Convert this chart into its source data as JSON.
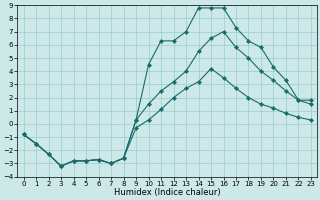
{
  "xlabel": "Humidex (Indice chaleur)",
  "xlim": [
    -0.5,
    23.5
  ],
  "ylim": [
    -4,
    9
  ],
  "xticks": [
    0,
    1,
    2,
    3,
    4,
    5,
    6,
    7,
    8,
    9,
    10,
    11,
    12,
    13,
    14,
    15,
    16,
    17,
    18,
    19,
    20,
    21,
    22,
    23
  ],
  "yticks": [
    -4,
    -3,
    -2,
    -1,
    0,
    1,
    2,
    3,
    4,
    5,
    6,
    7,
    8,
    9
  ],
  "bg_color": "#cce8e8",
  "grid_color": "#99cccc",
  "line_color": "#1a6b6b",
  "line1_x": [
    0,
    1,
    2,
    3,
    4,
    5,
    6,
    7,
    8,
    9,
    10,
    11,
    12,
    13,
    14,
    15,
    16,
    17,
    18,
    19,
    20,
    21,
    22,
    23
  ],
  "line1_y": [
    -0.8,
    -1.5,
    -2.3,
    -3.2,
    -2.8,
    -2.8,
    -2.7,
    -3.0,
    -2.6,
    -0.3,
    0.3,
    1.1,
    2.0,
    2.7,
    3.2,
    4.2,
    3.5,
    2.7,
    2.0,
    1.5,
    1.2,
    0.8,
    0.5,
    0.3
  ],
  "line2_x": [
    0,
    1,
    2,
    3,
    4,
    5,
    6,
    7,
    8,
    9,
    10,
    11,
    12,
    13,
    14,
    15,
    16,
    17,
    18,
    19,
    20,
    21,
    22,
    23
  ],
  "line2_y": [
    -0.8,
    -1.5,
    -2.3,
    -3.2,
    -2.8,
    -2.8,
    -2.7,
    -3.0,
    -2.6,
    0.3,
    4.5,
    6.3,
    6.3,
    7.0,
    8.8,
    8.8,
    8.8,
    7.3,
    6.3,
    5.8,
    4.3,
    3.3,
    1.8,
    1.8
  ],
  "line3_x": [
    0,
    1,
    2,
    3,
    4,
    5,
    6,
    7,
    8,
    9,
    10,
    11,
    12,
    13,
    14,
    15,
    16,
    17,
    18,
    19,
    20,
    21,
    22,
    23
  ],
  "line3_y": [
    -0.8,
    -1.5,
    -2.3,
    -3.2,
    -2.8,
    -2.8,
    -2.7,
    -3.0,
    -2.6,
    0.3,
    1.5,
    2.5,
    3.2,
    4.0,
    5.5,
    6.5,
    7.0,
    5.8,
    5.0,
    4.0,
    3.3,
    2.5,
    1.8,
    1.5
  ],
  "marker": "D",
  "markersize": 2,
  "linewidth": 0.8,
  "tick_fontsize": 5,
  "xlabel_fontsize": 6
}
